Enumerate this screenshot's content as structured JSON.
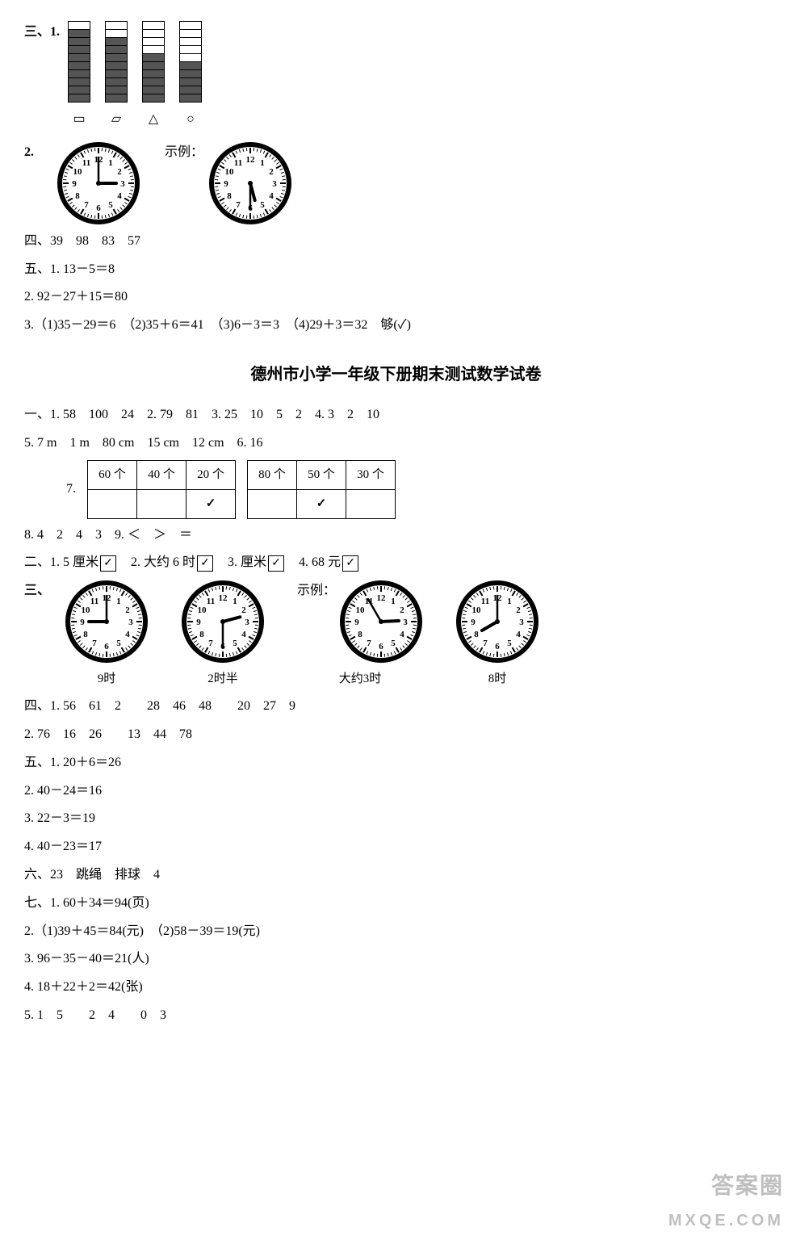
{
  "top": {
    "section3_label": "三、1.",
    "bars": [
      {
        "total": 10,
        "filled": 9,
        "symbol": "▭"
      },
      {
        "total": 10,
        "filled": 8,
        "symbol": "▱"
      },
      {
        "total": 10,
        "filled": 6,
        "symbol": "△"
      },
      {
        "total": 10,
        "filled": 5,
        "symbol": "○"
      }
    ],
    "item2_label": "2.",
    "clock2a": {
      "hour": 3,
      "minute": 0
    },
    "example_label": "示例：",
    "clock2b": {
      "hour": 5,
      "minute": 30
    },
    "section4": "四、39　98　83　57",
    "section5_1": "五、1. 13－5＝8",
    "section5_2": "2. 92－27＋15＝80",
    "section5_3": "3.（1)35－29＝6　（2)35＋6＝41　（3)6－3＝3　（4)29＋3＝32　够(✓)"
  },
  "title": "德州市小学一年级下册期末测试数学试卷",
  "p2": {
    "q1": "一、1. 58　100　24　2. 79　81　3. 25　10　5　2　4. 3　2　10",
    "q5": "5. 7 m　1 m　80 cm　15 cm　12 cm　6. 16",
    "q7_label": "7.",
    "table1": {
      "headers": [
        "60 个",
        "40 个",
        "20 个"
      ],
      "check_col": 2
    },
    "table2": {
      "headers": [
        "80 个",
        "50 个",
        "30 个"
      ],
      "check_col": 1
    },
    "q8": "8. 4　2　4　3　9. ＜　＞　＝",
    "q2_items": [
      {
        "pre": "二、1. 5 厘米"
      },
      {
        "pre": "2. 大约 6 时"
      },
      {
        "pre": "3. 厘米"
      },
      {
        "pre": "4. 68 元"
      }
    ],
    "section3_label": "三、",
    "clocks": [
      {
        "hour": 9,
        "minute": 0,
        "caption": "9时"
      },
      {
        "hour": 2,
        "minute": 30,
        "caption": "2时半"
      },
      {
        "hour": 2,
        "minute": 55,
        "caption": "大约3时",
        "example": "示例："
      },
      {
        "hour": 8,
        "minute": 0,
        "caption": "8时"
      }
    ],
    "section4_1": "四、1. 56　61　2　　28　46　48　　20　27　9",
    "section4_2": "2. 76　16　26　　13　44　78",
    "section5_1": "五、1. 20＋6＝26",
    "section5_2": "2. 40－24＝16",
    "section5_3": "3. 22－3＝19",
    "section5_4": "4. 40－23＝17",
    "section6": "六、23　跳绳　排球　4",
    "section7_1": "七、1. 60＋34＝94(页)",
    "section7_2": "2.（1)39＋45＝84(元)　（2)58－39＝19(元)",
    "section7_3": "3. 96－35－40＝21(人)",
    "section7_4": "4. 18＋22＋2＝42(张)",
    "section7_5": "5. 1　5　　2　4　　0　3"
  },
  "watermark": {
    "l1": "答案圈",
    "l2": "MXQE.COM"
  },
  "clock_style": {
    "radius": 48,
    "face_fill": "#fff",
    "rim_stroke": "#000",
    "rim_width": 6,
    "num_font": 11,
    "hand_color": "#000",
    "hour_len": 22,
    "min_len": 32
  }
}
